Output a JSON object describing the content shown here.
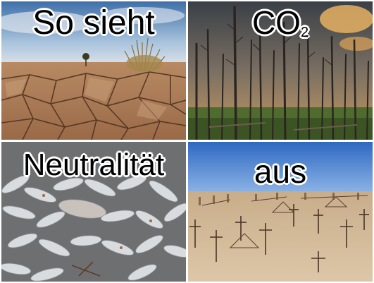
{
  "panels": [
    {
      "id": "drought",
      "caption": "So sieht"
    },
    {
      "id": "dead-forest",
      "caption_main": "CO",
      "caption_sub": "2"
    },
    {
      "id": "dead-fish",
      "caption": "Neutralität"
    },
    {
      "id": "cemetery",
      "caption": "aus"
    }
  ],
  "colors": {
    "background": "#ffffff",
    "caption_text": "#000000",
    "caption_outline": "#ffffff"
  }
}
